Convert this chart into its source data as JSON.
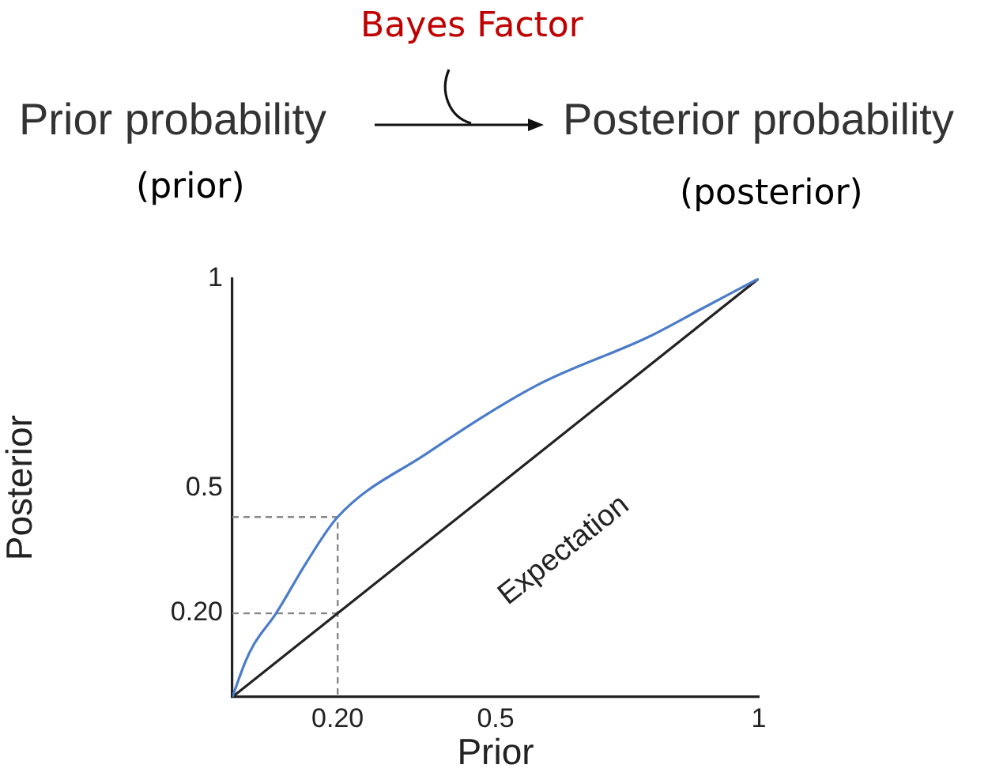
{
  "chart_data": {
    "type": "line",
    "xlabel": "Prior",
    "ylabel": "Posterior",
    "annotations": [
      "Prior probability",
      "Posterior probability",
      "Bayes Factor",
      "(prior)",
      "(posterior)",
      "Expectation"
    ],
    "series": [
      {
        "color": "#4a7cc9",
        "x": [
          0,
          0.025,
          0.041,
          0.082,
          0.14,
          0.2,
          0.367,
          0.579,
          0.79,
          0.895,
          1
        ],
        "values": [
          0,
          0.085,
          0.126,
          0.198,
          0.32,
          0.43,
          0.58,
          0.745,
          0.86,
          0.93,
          1
        ]
      },
      {
        "color": "#222222",
        "x": [
          0,
          1
        ],
        "values": [
          0,
          1
        ]
      },
      {
        "color": "#888888",
        "line_style": "dashed",
        "x": [
          0,
          0.2,
          0.2
        ],
        "values": [
          0.43,
          0.43,
          0
        ]
      },
      {
        "color": "#888888",
        "line_style": "dashed",
        "x": [
          0,
          0.2
        ],
        "values": [
          0.2,
          0.2
        ]
      }
    ],
    "xlim": [
      0,
      1
    ],
    "ylim": [
      0,
      1
    ],
    "xticks": [
      {
        "value": 0.2,
        "label": "0.20"
      },
      0.5,
      1
    ],
    "yticks": [
      {
        "value": 0.2,
        "label": "0.20"
      },
      0.5,
      1
    ],
    "grid": false,
    "legend": false,
    "marker": "none"
  }
}
